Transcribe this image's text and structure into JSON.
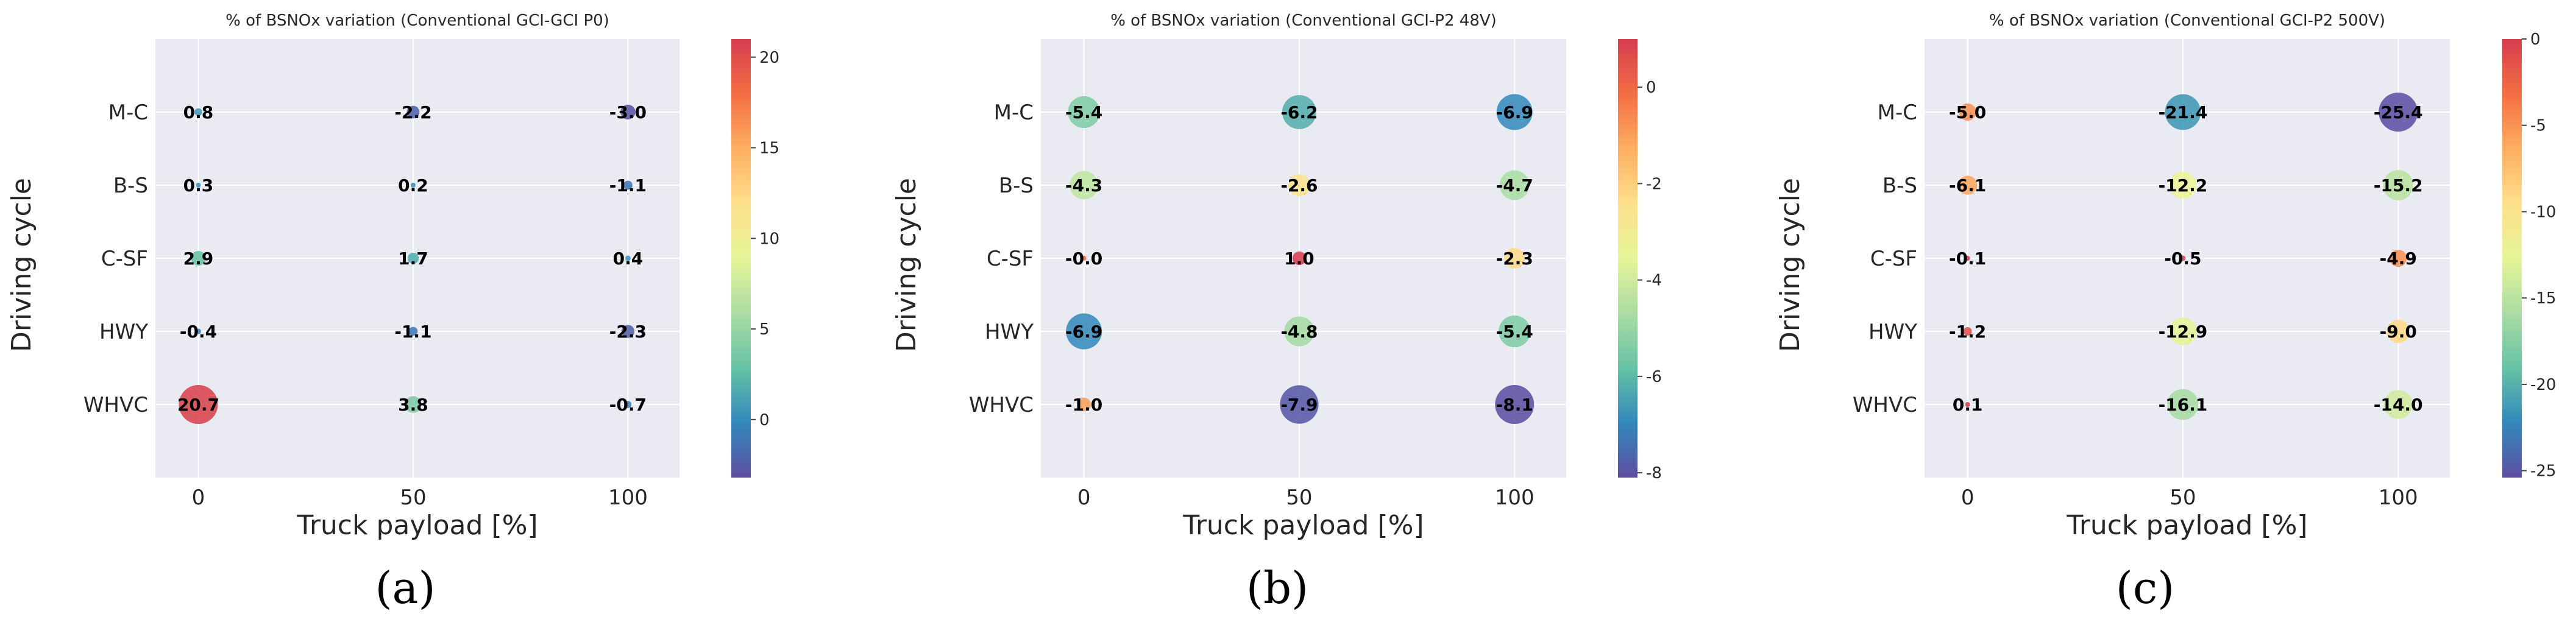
{
  "colors": {
    "plot_bg": "#eaeaf2",
    "grid": "#ffffff",
    "text": "#262626",
    "cmap": [
      "#5e4fa2",
      "#3288bd",
      "#66c2a5",
      "#abdda4",
      "#e6f598",
      "#fee08b",
      "#fdae61",
      "#f46d43",
      "#d53e4f"
    ]
  },
  "chart_data": [
    {
      "type": "scatter",
      "title": "% of BSNOx variation (Conventional GCI-GCI P0)",
      "xlabel": "Truck payload [%]",
      "ylabel": "Driving cycle",
      "caption": "(a)",
      "x_ticks": [
        "0",
        "50",
        "100"
      ],
      "x_values": [
        0,
        50,
        100
      ],
      "xlim": [
        -10,
        112
      ],
      "categories": [
        "M-C",
        "B-S",
        "C-SF",
        "HWY",
        "WHVC"
      ],
      "colorbar": {
        "vmin": -3.2,
        "vmax": 21.0,
        "ticks": [
          20,
          15,
          10,
          5,
          0
        ]
      },
      "values": [
        [
          0.8,
          -2.2,
          -3.0
        ],
        [
          0.3,
          0.2,
          -1.1
        ],
        [
          2.9,
          1.7,
          0.4
        ],
        [
          -0.4,
          -1.1,
          -2.3
        ],
        [
          20.7,
          3.8,
          -0.7
        ]
      ],
      "labels": [
        [
          "0.8",
          "-2.2",
          "-3.0"
        ],
        [
          "0.3",
          "0.2",
          "-1.1"
        ],
        [
          "2.9",
          "1.7",
          "0.4"
        ],
        [
          "-0.4",
          "-1.1",
          "-2.3"
        ],
        [
          "20.7",
          "3.8",
          "-0.7"
        ]
      ]
    },
    {
      "type": "scatter",
      "title": "% of BSNOx variation (Conventional GCI-P2 48V)",
      "xlabel": "Truck payload [%]",
      "ylabel": "Driving cycle",
      "caption": "(b)",
      "x_ticks": [
        "0",
        "50",
        "100"
      ],
      "x_values": [
        0,
        50,
        100
      ],
      "xlim": [
        -10,
        112
      ],
      "categories": [
        "M-C",
        "B-S",
        "C-SF",
        "HWY",
        "WHVC"
      ],
      "colorbar": {
        "vmin": -8.1,
        "vmax": 1.0,
        "ticks": [
          0,
          -2,
          -4,
          -6,
          -8
        ]
      },
      "values": [
        [
          -5.4,
          -6.2,
          -6.9
        ],
        [
          -4.3,
          -2.6,
          -4.7
        ],
        [
          -0.0,
          1.0,
          -2.3
        ],
        [
          -6.9,
          -4.8,
          -5.4
        ],
        [
          -1.0,
          -7.9,
          -8.1
        ]
      ],
      "labels": [
        [
          "-5.4",
          "-6.2",
          "-6.9"
        ],
        [
          "-4.3",
          "-2.6",
          "-4.7"
        ],
        [
          "-0.0",
          "1.0",
          "-2.3"
        ],
        [
          "-6.9",
          "-4.8",
          "-5.4"
        ],
        [
          "-1.0",
          "-7.9",
          "-8.1"
        ]
      ]
    },
    {
      "type": "scatter",
      "title": "% of BSNOx variation (Conventional GCI-P2 500V)",
      "xlabel": "Truck payload [%]",
      "ylabel": "Driving cycle",
      "caption": "(c)",
      "x_ticks": [
        "0",
        "50",
        "100"
      ],
      "x_values": [
        0,
        50,
        100
      ],
      "xlim": [
        -10,
        112
      ],
      "categories": [
        "M-C",
        "B-S",
        "C-SF",
        "HWY",
        "WHVC"
      ],
      "colorbar": {
        "vmin": -25.4,
        "vmax": 0.0,
        "ticks": [
          0,
          -5,
          -10,
          -15,
          -20,
          -25
        ]
      },
      "values": [
        [
          -5.0,
          -21.4,
          -25.4
        ],
        [
          -6.1,
          -12.2,
          -15.2
        ],
        [
          -0.1,
          -0.5,
          -4.9
        ],
        [
          -1.2,
          -12.9,
          -9.0
        ],
        [
          0.1,
          -16.1,
          -14.0
        ]
      ],
      "labels": [
        [
          "-5.0",
          "-21.4",
          "-25.4"
        ],
        [
          "-6.1",
          "-12.2",
          "-15.2"
        ],
        [
          "-0.1",
          "-0.5",
          "-4.9"
        ],
        [
          "-1.2",
          "-12.9",
          "-9.0"
        ],
        [
          "0.1",
          "-16.1",
          "-14.0"
        ]
      ]
    }
  ]
}
